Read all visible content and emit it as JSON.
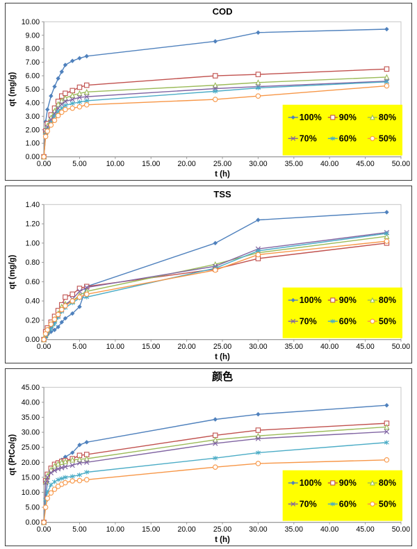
{
  "page": {
    "background": "#ffffff",
    "panel_border_color": "#3a3a3a"
  },
  "legend": {
    "background": "#FFFF00",
    "rows": [
      [
        "100%",
        "90%",
        "80%"
      ],
      [
        "70%",
        "60%",
        "50%"
      ]
    ]
  },
  "chart_data": [
    {
      "type": "line",
      "title": "COD",
      "xlabel": "t (h)",
      "ylabel": "qt (mg/g)",
      "xlim": [
        0,
        50
      ],
      "xtick_step": 5,
      "ylim": [
        0,
        10
      ],
      "ytick_step": 1,
      "tick_decimals": 2,
      "grid": false,
      "legend_position": "inside-right",
      "x": [
        0,
        0.25,
        0.5,
        1,
        1.5,
        2,
        2.5,
        3,
        4,
        5,
        6,
        24,
        30,
        48
      ],
      "series": [
        {
          "name": "100%",
          "color": "#4F81BD",
          "marker": "diamond",
          "values": [
            0,
            2.6,
            3.5,
            4.5,
            5.2,
            5.8,
            6.3,
            6.8,
            7.1,
            7.3,
            7.45,
            8.55,
            9.2,
            9.45
          ]
        },
        {
          "name": "90%",
          "color": "#C0504D",
          "marker": "square",
          "values": [
            0,
            1.9,
            2.45,
            3.1,
            3.6,
            4.1,
            4.5,
            4.7,
            4.9,
            5.15,
            5.3,
            6.0,
            6.1,
            6.5
          ]
        },
        {
          "name": "80%",
          "color": "#9BBB59",
          "marker": "triangle",
          "values": [
            0,
            1.85,
            2.3,
            2.9,
            3.4,
            3.9,
            4.15,
            4.35,
            4.55,
            4.7,
            4.8,
            5.3,
            5.5,
            5.9
          ]
        },
        {
          "name": "70%",
          "color": "#8064A2",
          "marker": "x",
          "values": [
            0,
            1.8,
            2.2,
            2.75,
            3.2,
            3.6,
            3.9,
            4.1,
            4.25,
            4.4,
            4.45,
            5.05,
            5.2,
            5.6
          ]
        },
        {
          "name": "60%",
          "color": "#4BACC6",
          "marker": "asterisk",
          "values": [
            0,
            1.6,
            2.0,
            2.5,
            3.0,
            3.35,
            3.6,
            3.8,
            3.95,
            4.05,
            4.15,
            4.85,
            5.1,
            5.55
          ]
        },
        {
          "name": "50%",
          "color": "#F79646",
          "marker": "circle",
          "values": [
            0,
            1.5,
            1.9,
            2.35,
            2.7,
            3.05,
            3.3,
            3.5,
            3.6,
            3.7,
            3.85,
            4.25,
            4.5,
            5.25
          ]
        }
      ]
    },
    {
      "type": "line",
      "title": "TSS",
      "xlabel": "t (h)",
      "ylabel": "qt (mg/g)",
      "xlim": [
        0,
        50
      ],
      "xtick_step": 5,
      "ylim": [
        0,
        1.4
      ],
      "ytick_step": 0.2,
      "tick_decimals": 2,
      "grid": false,
      "legend_position": "inside-right",
      "x": [
        0,
        0.25,
        0.5,
        1,
        1.5,
        2,
        2.5,
        3,
        4,
        5,
        6,
        24,
        30,
        48
      ],
      "series": [
        {
          "name": "100%",
          "color": "#4F81BD",
          "marker": "diamond",
          "values": [
            0,
            0.02,
            0.05,
            0.08,
            0.1,
            0.13,
            0.18,
            0.22,
            0.27,
            0.34,
            0.55,
            1.0,
            1.24,
            1.32
          ]
        },
        {
          "name": "90%",
          "color": "#C0504D",
          "marker": "square",
          "values": [
            0,
            0.08,
            0.12,
            0.18,
            0.24,
            0.3,
            0.36,
            0.44,
            0.47,
            0.53,
            0.55,
            0.73,
            0.84,
            1.0
          ]
        },
        {
          "name": "80%",
          "color": "#9BBB59",
          "marker": "triangle",
          "values": [
            0,
            0.05,
            0.09,
            0.15,
            0.21,
            0.27,
            0.34,
            0.37,
            0.4,
            0.46,
            0.5,
            0.78,
            0.9,
            1.07
          ]
        },
        {
          "name": "70%",
          "color": "#8064A2",
          "marker": "x",
          "values": [
            0,
            0.04,
            0.08,
            0.13,
            0.19,
            0.25,
            0.31,
            0.36,
            0.42,
            0.5,
            0.54,
            0.76,
            0.94,
            1.11
          ]
        },
        {
          "name": "60%",
          "color": "#4BACC6",
          "marker": "asterisk",
          "values": [
            0,
            0.03,
            0.07,
            0.11,
            0.16,
            0.23,
            0.29,
            0.33,
            0.38,
            0.43,
            0.44,
            0.74,
            0.92,
            1.1
          ]
        },
        {
          "name": "50%",
          "color": "#F79646",
          "marker": "circle",
          "values": [
            0,
            0.06,
            0.1,
            0.16,
            0.21,
            0.26,
            0.31,
            0.35,
            0.4,
            0.44,
            0.47,
            0.72,
            0.88,
            1.02
          ]
        }
      ]
    },
    {
      "type": "line",
      "title": "颜色",
      "xlabel": "t (h)",
      "ylabel": "qt (PtCo/g)",
      "xlim": [
        0,
        50
      ],
      "xtick_step": 5,
      "ylim": [
        0,
        45
      ],
      "ytick_step": 5,
      "tick_decimals": 2,
      "grid": false,
      "legend_position": "inside-right",
      "x": [
        0,
        0.25,
        0.5,
        1,
        1.5,
        2,
        2.5,
        3,
        4,
        5,
        6,
        24,
        30,
        48
      ],
      "series": [
        {
          "name": "100%",
          "color": "#4F81BD",
          "marker": "diamond",
          "values": [
            0,
            8.0,
            13.5,
            17.8,
            19.0,
            20.0,
            20.8,
            21.8,
            23.2,
            25.8,
            26.7,
            34.3,
            36.0,
            39.0
          ]
        },
        {
          "name": "90%",
          "color": "#C0504D",
          "marker": "square",
          "values": [
            0,
            13.8,
            16.0,
            18.0,
            19.3,
            19.8,
            20.3,
            20.6,
            21.2,
            22.3,
            22.6,
            29.0,
            30.7,
            33.0
          ]
        },
        {
          "name": "80%",
          "color": "#9BBB59",
          "marker": "triangle",
          "values": [
            0,
            13.5,
            15.5,
            17.5,
            18.8,
            19.5,
            20.0,
            20.3,
            20.8,
            21.0,
            21.2,
            27.5,
            28.8,
            31.8
          ]
        },
        {
          "name": "70%",
          "color": "#8064A2",
          "marker": "x",
          "values": [
            0,
            13.2,
            15.0,
            16.5,
            17.3,
            17.8,
            18.2,
            18.5,
            19.0,
            19.8,
            20.0,
            26.3,
            27.9,
            30.2
          ]
        },
        {
          "name": "60%",
          "color": "#4BACC6",
          "marker": "asterisk",
          "values": [
            0,
            7.5,
            10.0,
            12.5,
            13.5,
            14.2,
            14.6,
            15.0,
            15.3,
            15.8,
            16.7,
            21.4,
            23.2,
            26.6
          ]
        },
        {
          "name": "50%",
          "color": "#F79646",
          "marker": "circle",
          "values": [
            0,
            5.0,
            8.0,
            9.8,
            11.0,
            12.0,
            12.7,
            13.2,
            13.8,
            13.9,
            14.2,
            18.4,
            19.6,
            20.8
          ]
        }
      ]
    }
  ]
}
